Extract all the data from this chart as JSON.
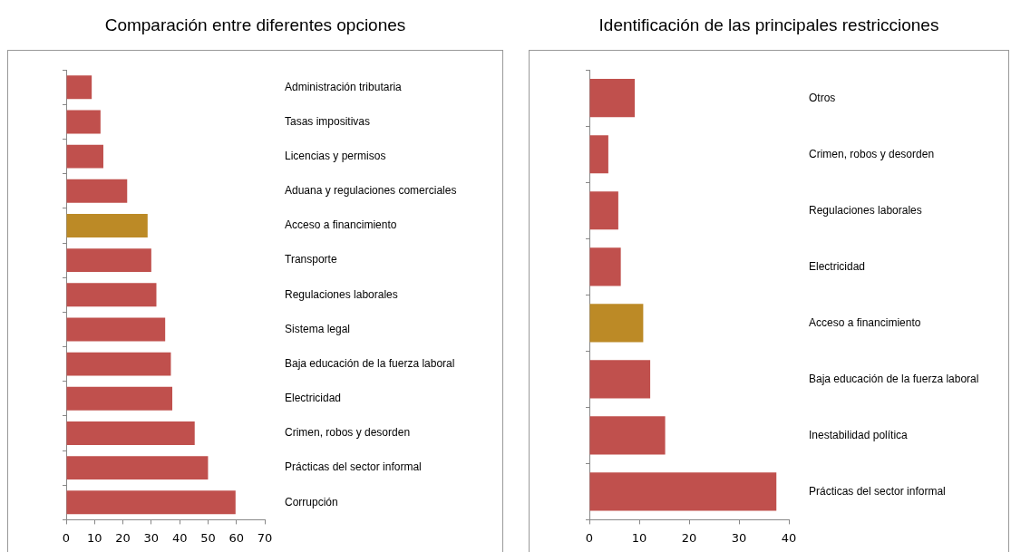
{
  "chart_data": [
    {
      "type": "bar",
      "orientation": "horizontal",
      "title": "Comparación entre diferentes opciones",
      "categories": [
        "Administración tributaria",
        "Tasas impositivas",
        "Licencias y permisos",
        "Aduana y regulaciones comerciales",
        "Acceso a financimiento",
        "Transporte",
        "Regulaciones laborales",
        "Sistema legal",
        "Baja educación de la fuerza laboral",
        "Electricidad",
        "Crimen, robos y desorden",
        "Prácticas del sector informal",
        "Corrupción"
      ],
      "values": [
        9.0,
        12.1,
        13.1,
        21.5,
        28.7,
        30.0,
        31.8,
        34.9,
        36.9,
        37.4,
        45.3,
        50.0,
        59.7
      ],
      "colors": [
        "#c0504d",
        "#c0504d",
        "#c0504d",
        "#c0504d",
        "#bc8a26",
        "#c0504d",
        "#c0504d",
        "#c0504d",
        "#c0504d",
        "#c0504d",
        "#c0504d",
        "#c0504d",
        "#c0504d"
      ],
      "xlim": [
        0,
        70
      ],
      "xticks": [
        0,
        10,
        20,
        30,
        40,
        50,
        60,
        70
      ],
      "grid": false,
      "legend": false
    },
    {
      "type": "bar",
      "orientation": "horizontal",
      "title": "Identificación de las principales restricciones",
      "categories": [
        "Otros",
        "Crimen, robos y desorden",
        "Regulaciones laborales",
        "Electricidad",
        "Acceso a financimiento",
        "Baja educación de la fuerza laboral",
        "Inestabilidad política",
        "Prácticas del sector informal"
      ],
      "values": [
        9.1,
        3.8,
        5.8,
        6.3,
        10.8,
        12.2,
        15.2,
        37.5
      ],
      "colors": [
        "#c0504d",
        "#c0504d",
        "#c0504d",
        "#c0504d",
        "#bc8a26",
        "#c0504d",
        "#c0504d",
        "#c0504d"
      ],
      "xlim": [
        0,
        40
      ],
      "xticks": [
        0,
        10,
        20,
        30,
        40
      ],
      "grid": false,
      "legend": false
    }
  ]
}
